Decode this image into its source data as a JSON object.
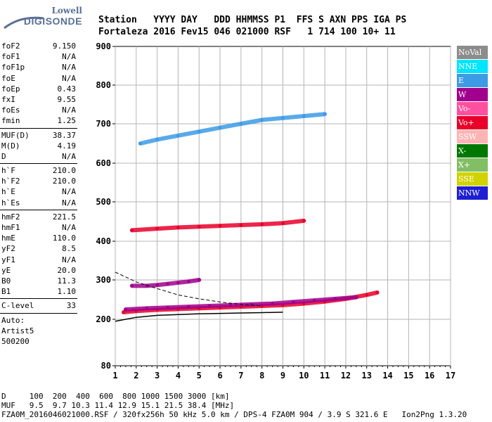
{
  "logo": {
    "line1": "Lowell",
    "line2": "DIGISONDE"
  },
  "header": {
    "labels": "Station   YYYY DAY   DDD HHMMSS P1  FFS S AXN PPS IGA PS",
    "values": "Fortaleza 2016 Fev15 046 021000 RSF   1 714 100 10+ 11"
  },
  "params": {
    "group1": [
      {
        "label": "foF2",
        "value": "9.150"
      },
      {
        "label": "foF1",
        "value": "N/A"
      },
      {
        "label": "foF1p",
        "value": "N/A"
      },
      {
        "label": "foE",
        "value": "N/A"
      },
      {
        "label": "foEp",
        "value": "0.43"
      },
      {
        "label": "fxI",
        "value": "9.55"
      },
      {
        "label": "foEs",
        "value": "N/A"
      },
      {
        "label": "fmin",
        "value": "1.25"
      }
    ],
    "group2": [
      {
        "label": "MUF(D)",
        "value": "38.37"
      },
      {
        "label": "M(D)",
        "value": "4.19"
      },
      {
        "label": "D",
        "value": "N/A"
      }
    ],
    "group3": [
      {
        "label": "h`F",
        "value": "210.0"
      },
      {
        "label": "h`F2",
        "value": "210.0"
      },
      {
        "label": "h`E",
        "value": "N/A"
      },
      {
        "label": "h`Es",
        "value": "N/A"
      }
    ],
    "group4": [
      {
        "label": "hmF2",
        "value": "221.5"
      },
      {
        "label": "hmF1",
        "value": "N/A"
      },
      {
        "label": "hmE",
        "value": "110.0"
      },
      {
        "label": "yF2",
        "value": "8.5"
      },
      {
        "label": "yF1",
        "value": "N/A"
      },
      {
        "label": "yE",
        "value": "20.0"
      },
      {
        "label": "B0",
        "value": "11.3"
      },
      {
        "label": "B1",
        "value": "1.10"
      }
    ],
    "group5": [
      {
        "label": "C-level",
        "value": "33"
      }
    ],
    "auto_label": "Auto:",
    "artist": "Artist5",
    "version": "500200"
  },
  "legend": [
    {
      "label": "NoVal",
      "color": "#8c8c8c"
    },
    {
      "label": "NNE",
      "color": "#00e5ff"
    },
    {
      "label": "E",
      "color": "#3d9be6"
    },
    {
      "label": "W",
      "color": "#a0008c"
    },
    {
      "label": "Vo-",
      "color": "#ff50a0"
    },
    {
      "label": "Vo+",
      "color": "#e8002a"
    },
    {
      "label": "SSW",
      "color": "#ffb4b4"
    },
    {
      "label": "X-",
      "color": "#007800"
    },
    {
      "label": "X+",
      "color": "#82be64"
    },
    {
      "label": "SSE",
      "color": "#d2d200"
    },
    {
      "label": "NNW",
      "color": "#1e1ed2"
    }
  ],
  "footer": {
    "d_row": "D     100  200  400  600  800 1000 1500 3000 [km]",
    "muf_row": "MUF   9.5  9.7 10.3 11.4 12.9 15.1 21.5 38.4 [MHz]",
    "file_row": "FZA0M_2016046021000.RSF / 320fx256h 50 kHz 5.0 km / DPS-4 FZA0M 904 / 3.9 S 321.6 E   Ion2Png 1.3.20"
  },
  "chart_data": {
    "type": "scatter",
    "xlabel": "",
    "ylabel": "",
    "x_ticks": [
      "1",
      "2",
      "3",
      "4",
      "5",
      "6",
      "7",
      "8",
      "9",
      "10",
      "11",
      "12",
      "13",
      "14",
      "15",
      "16",
      "17"
    ],
    "y_ticks": [
      "80",
      "200",
      "300",
      "400",
      "500",
      "600",
      "700",
      "800",
      "900"
    ],
    "x_range": [
      1,
      17
    ],
    "y_range": [
      80,
      900
    ],
    "grid": true,
    "legend_position": "right",
    "traces": [
      {
        "name": "F2 O-trace (Vo+)",
        "color": "#e8002a",
        "x": [
          1.4,
          2.0,
          3.0,
          4.0,
          5.0,
          6.0,
          7.0,
          8.0,
          9.0,
          10.0,
          11.0,
          12.0,
          13.0,
          13.5
        ],
        "y": [
          218,
          221,
          224,
          226,
          228,
          230,
          232,
          234,
          236,
          240,
          245,
          252,
          262,
          268
        ]
      },
      {
        "name": "F2 X-trace (W)",
        "color": "#a0008c",
        "x": [
          1.5,
          2.5,
          3.5,
          4.5,
          5.5,
          6.5,
          7.5,
          8.5,
          9.5,
          10.5,
          11.5,
          12.5
        ],
        "y": [
          225,
          228,
          230,
          232,
          234,
          236,
          238,
          240,
          244,
          248,
          252,
          256
        ]
      },
      {
        "name": "second hop (W)",
        "color": "#a0008c",
        "x": [
          1.8,
          2.5,
          3.0,
          3.5,
          4.0,
          4.5,
          5.0
        ],
        "y": [
          285,
          285,
          287,
          290,
          293,
          296,
          300
        ]
      },
      {
        "name": "second hop 430 (Vo+)",
        "color": "#e8002a",
        "x": [
          1.8,
          3.0,
          4.0,
          5.0,
          6.0,
          7.0,
          8.0,
          9.0,
          10.0
        ],
        "y": [
          428,
          432,
          435,
          437,
          439,
          441,
          443,
          446,
          452
        ]
      },
      {
        "name": "E oblique 650-750 (E)",
        "color": "#3d9be6",
        "x": [
          2.2,
          3.0,
          4.0,
          5.0,
          6.0,
          7.0,
          8.0,
          9.0,
          10.0,
          11.0
        ],
        "y": [
          650,
          660,
          670,
          680,
          690,
          700,
          710,
          715,
          720,
          725
        ]
      }
    ],
    "profile_curve": {
      "x": [
        1.0,
        2.0,
        3.0,
        4.0,
        5.0,
        6.0,
        7.0,
        8.0,
        9.0
      ],
      "y": [
        195,
        205,
        210,
        212,
        214,
        215,
        216,
        217,
        218
      ]
    },
    "dashed_curve": {
      "x": [
        1.0,
        2.0,
        3.0,
        4.0,
        5.0,
        6.0,
        7.0,
        8.0
      ],
      "y": [
        320,
        295,
        278,
        262,
        252,
        244,
        238,
        234
      ]
    }
  }
}
